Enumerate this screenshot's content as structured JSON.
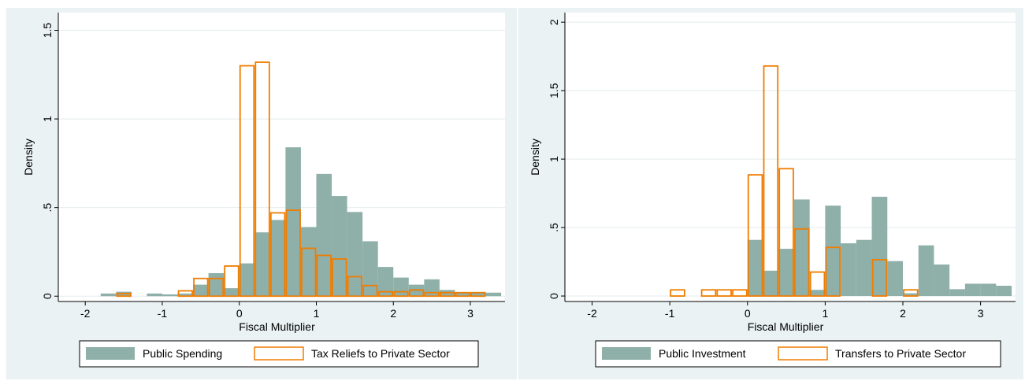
{
  "colors": {
    "filled": "#8fafa9",
    "outline": "#f07d00",
    "panel_bg": "#eaf2f3",
    "grid": "#e4ebed"
  },
  "chart_data": [
    {
      "type": "bar",
      "xlabel": "Fiscal Multiplier",
      "ylabel": "Density",
      "xlim": [
        -2.35,
        3.45
      ],
      "ylim": [
        -0.03,
        1.6
      ],
      "xticks": [
        "-2",
        "-1",
        "0",
        "1",
        "2",
        "3"
      ],
      "yticks": [
        "0",
        ".5",
        "1",
        "1.5"
      ],
      "ytick_values": [
        0,
        0.5,
        1,
        1.5
      ],
      "grid": true,
      "legend_position": "bottom",
      "series": [
        {
          "name": "Public Spending",
          "style": "filled",
          "bin_width": 0.2,
          "bin_starts": [
            -1.8,
            -1.6,
            -1.2,
            -1.0,
            -0.8,
            -0.6,
            -0.4,
            -0.2,
            0.0,
            0.2,
            0.4,
            0.6,
            0.8,
            1.0,
            1.2,
            1.4,
            1.6,
            1.8,
            2.0,
            2.2,
            2.4,
            2.6,
            2.8,
            3.0,
            3.2
          ],
          "values": [
            0.015,
            0.025,
            0.015,
            0.01,
            0.015,
            0.065,
            0.13,
            0.045,
            0.185,
            0.36,
            0.43,
            0.84,
            0.39,
            0.69,
            0.565,
            0.475,
            0.31,
            0.165,
            0.105,
            0.065,
            0.095,
            0.035,
            0.02,
            0.02,
            0.02
          ]
        },
        {
          "name": "Tax Reliefs to Private Sector",
          "style": "outline",
          "bin_width": 0.2,
          "bin_starts": [
            -1.6,
            -0.8,
            -0.6,
            -0.4,
            -0.2,
            0.0,
            0.2,
            0.4,
            0.6,
            0.8,
            1.0,
            1.2,
            1.4,
            1.6,
            1.8,
            2.0,
            2.2,
            2.4,
            2.6,
            2.8,
            3.0
          ],
          "values": [
            0.015,
            0.03,
            0.1,
            0.1,
            0.17,
            1.3,
            1.32,
            0.47,
            0.485,
            0.27,
            0.23,
            0.21,
            0.11,
            0.06,
            0.025,
            0.025,
            0.035,
            0.02,
            0.02,
            0.02,
            0.02
          ]
        }
      ]
    },
    {
      "type": "bar",
      "xlabel": "Fiscal Multiplier",
      "ylabel": "Density",
      "xlim": [
        -2.35,
        3.45
      ],
      "ylim": [
        -0.04,
        2.07
      ],
      "xticks": [
        "-2",
        "-1",
        "0",
        "1",
        "2",
        "3"
      ],
      "yticks": [
        "0",
        ".5",
        "1",
        "1.5",
        "2"
      ],
      "ytick_values": [
        0,
        0.5,
        1,
        1.5,
        2
      ],
      "grid": true,
      "legend_position": "bottom",
      "series": [
        {
          "name": "Public Investment",
          "style": "filled",
          "bin_width": 0.2,
          "bin_starts": [
            0.0,
            0.2,
            0.4,
            0.6,
            0.8,
            1.0,
            1.2,
            1.4,
            1.6,
            1.8,
            2.0,
            2.2,
            2.4,
            2.6,
            2.8,
            3.0,
            3.2
          ],
          "values": [
            0.41,
            0.185,
            0.345,
            0.705,
            0.045,
            0.66,
            0.385,
            0.41,
            0.725,
            0.255,
            0.02,
            0.37,
            0.23,
            0.05,
            0.09,
            0.09,
            0.075
          ]
        },
        {
          "name": "Transfers to Private Sector",
          "style": "outline",
          "bin_width": 0.2,
          "bin_starts": [
            -1.0,
            -0.6,
            -0.4,
            -0.2,
            0.0,
            0.2,
            0.4,
            0.6,
            0.8,
            1.0,
            1.6,
            2.0
          ],
          "values": [
            0.045,
            0.045,
            0.045,
            0.045,
            0.885,
            1.68,
            0.93,
            0.49,
            0.175,
            0.355,
            0.265,
            0.045
          ]
        }
      ]
    }
  ]
}
